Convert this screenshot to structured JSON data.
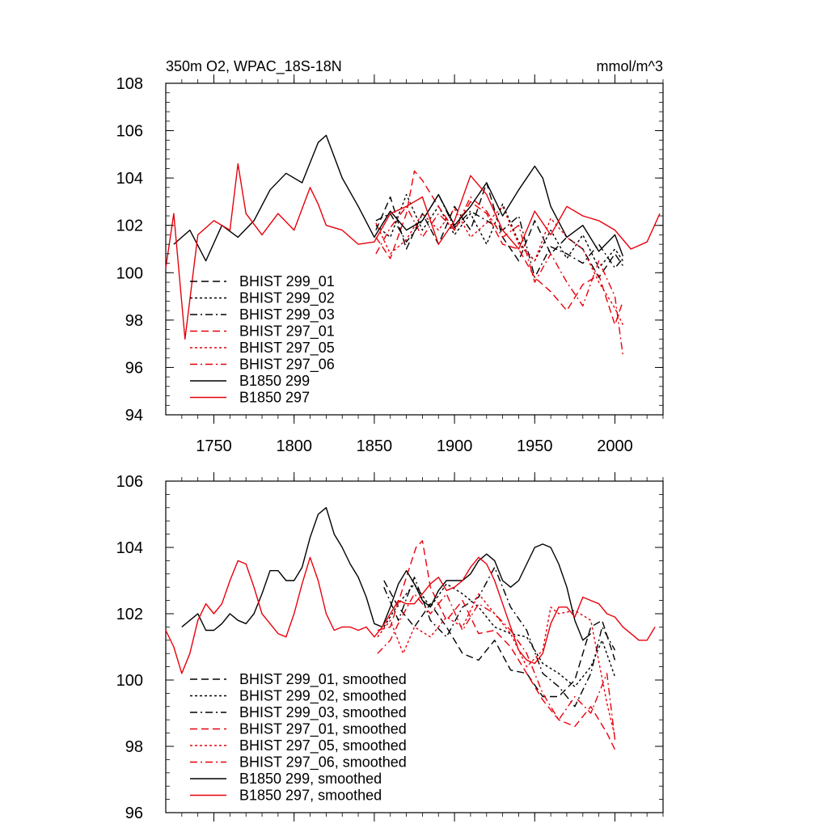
{
  "colors": {
    "black": "#000000",
    "red": "#e8000b"
  },
  "chart_data": [
    {
      "type": "line",
      "title": "350m O2, WPAC_18S-18N",
      "units": "mmol/m^3",
      "xlabel": "",
      "ylabel": "",
      "xlim": [
        1720,
        2030
      ],
      "ylim": [
        94,
        108
      ],
      "xticks": [
        1750,
        1800,
        1850,
        1900,
        1950,
        2000
      ],
      "xtick_labels": [
        "1750",
        "1800",
        "1850",
        "1900",
        "1950",
        "2000"
      ],
      "yticks": [
        94,
        96,
        98,
        100,
        102,
        104,
        106,
        108
      ],
      "ytick_labels": [
        "94",
        "96",
        "98",
        "100",
        "102",
        "104",
        "106",
        "108"
      ],
      "legend_position": "lower-left",
      "series": [
        {
          "name": "BHIST 299_01",
          "color": "black",
          "dash": "dashed",
          "x": [
            1851,
            1860,
            1870,
            1880,
            1890,
            1900,
            1910,
            1920,
            1930,
            1940,
            1950,
            1960,
            1970,
            1980,
            1990,
            2000,
            2005
          ],
          "y": [
            101.8,
            103.2,
            101.0,
            102.5,
            101.2,
            102.8,
            101.8,
            103.8,
            101.5,
            100.5,
            102.2,
            100.8,
            101.5,
            101.0,
            99.8,
            100.8,
            100.3
          ]
        },
        {
          "name": "BHIST 299_02",
          "color": "black",
          "dash": "dotted",
          "x": [
            1851,
            1860,
            1870,
            1880,
            1890,
            1900,
            1910,
            1920,
            1930,
            1940,
            1950,
            1960,
            1970,
            1980,
            1990,
            2000,
            2005
          ],
          "y": [
            102.0,
            101.5,
            103.3,
            101.8,
            102.8,
            101.6,
            102.5,
            101.2,
            102.9,
            101.3,
            100.5,
            101.8,
            100.6,
            101.6,
            100.2,
            101.0,
            100.5
          ]
        },
        {
          "name": "BHIST 299_03",
          "color": "black",
          "dash": "dashdot",
          "x": [
            1851,
            1860,
            1870,
            1880,
            1890,
            1900,
            1910,
            1920,
            1930,
            1940,
            1950,
            1960,
            1970,
            1980,
            1990,
            2000,
            2005
          ],
          "y": [
            102.2,
            102.5,
            101.3,
            102.2,
            103.3,
            101.9,
            102.6,
            102.2,
            101.8,
            102.4,
            99.8,
            101.1,
            100.8,
            100.4,
            101.2,
            100.2,
            100.6
          ]
        },
        {
          "name": "BHIST 297_01",
          "color": "red",
          "dash": "dashed",
          "x": [
            1851,
            1860,
            1870,
            1875,
            1880,
            1890,
            1900,
            1910,
            1920,
            1930,
            1940,
            1950,
            1960,
            1970,
            1980,
            1990,
            2000,
            2005
          ],
          "y": [
            101.5,
            100.6,
            102.5,
            104.3,
            103.9,
            102.8,
            101.8,
            103.0,
            102.5,
            101.2,
            101.0,
            99.8,
            99.2,
            98.4,
            99.5,
            99.9,
            97.8,
            98.8
          ]
        },
        {
          "name": "BHIST 297_05",
          "color": "red",
          "dash": "dotted",
          "x": [
            1851,
            1860,
            1870,
            1880,
            1890,
            1900,
            1910,
            1920,
            1930,
            1940,
            1950,
            1960,
            1970,
            1980,
            1990,
            2000,
            2005
          ],
          "y": [
            102.1,
            100.8,
            101.4,
            102.5,
            101.8,
            102.7,
            101.5,
            102.1,
            102.8,
            101.2,
            100.5,
            102.3,
            101.5,
            101.0,
            99.6,
            98.5,
            97.8
          ]
        },
        {
          "name": "BHIST 297_06",
          "color": "red",
          "dash": "dashdot",
          "x": [
            1851,
            1860,
            1870,
            1880,
            1890,
            1900,
            1910,
            1920,
            1930,
            1940,
            1950,
            1960,
            1970,
            1980,
            1990,
            2000,
            2005
          ],
          "y": [
            100.8,
            101.9,
            102.8,
            101.5,
            102.5,
            101.8,
            103.2,
            102.6,
            101.5,
            102.0,
            99.6,
            100.8,
            99.6,
            98.6,
            100.5,
            99.0,
            96.5
          ]
        },
        {
          "name": "B1850 299",
          "color": "black",
          "dash": "solid",
          "x": [
            1725,
            1735,
            1745,
            1755,
            1765,
            1775,
            1785,
            1795,
            1805,
            1815,
            1820,
            1830,
            1840,
            1850,
            1860,
            1870,
            1880,
            1890,
            1900,
            1910,
            1920,
            1930,
            1940,
            1950,
            1955,
            1960,
            1970,
            1980,
            1990,
            2000,
            2005
          ],
          "y": [
            101.2,
            101.8,
            100.5,
            102.0,
            101.5,
            102.2,
            103.5,
            104.2,
            103.8,
            105.5,
            105.8,
            104.0,
            102.8,
            101.5,
            102.6,
            101.8,
            102.2,
            103.3,
            102.0,
            102.8,
            103.8,
            102.4,
            103.5,
            104.5,
            104.0,
            102.8,
            101.5,
            102.0,
            100.9,
            101.6,
            100.7
          ]
        },
        {
          "name": "B1850 297",
          "color": "red",
          "dash": "solid",
          "x": [
            1720,
            1725,
            1732,
            1740,
            1750,
            1760,
            1765,
            1770,
            1780,
            1790,
            1800,
            1810,
            1815,
            1820,
            1830,
            1840,
            1850,
            1860,
            1870,
            1880,
            1890,
            1900,
            1910,
            1920,
            1930,
            1940,
            1950,
            1960,
            1970,
            1980,
            1990,
            2000,
            2010,
            2020,
            2028
          ],
          "y": [
            100.2,
            102.5,
            97.2,
            101.6,
            102.2,
            101.8,
            104.6,
            102.5,
            101.6,
            102.5,
            101.8,
            103.6,
            102.9,
            102.0,
            101.8,
            101.2,
            101.3,
            102.5,
            102.8,
            103.2,
            101.2,
            102.2,
            104.1,
            103.3,
            101.8,
            101.0,
            102.6,
            101.6,
            102.8,
            102.4,
            102.2,
            101.8,
            101.0,
            101.3,
            102.5
          ]
        }
      ]
    },
    {
      "type": "line",
      "title": "",
      "xlabel": "",
      "ylabel": "",
      "xlim": [
        1720,
        2030
      ],
      "ylim": [
        96,
        106
      ],
      "xticks": [
        1750,
        1800,
        1850,
        1900,
        1950,
        2000
      ],
      "xtick_labels": [],
      "yticks": [
        96,
        98,
        100,
        102,
        104,
        106
      ],
      "ytick_labels": [
        "96",
        "98",
        "100",
        "102",
        "104",
        "106"
      ],
      "legend_position": "lower-left",
      "series": [
        {
          "name": "BHIST 299_01, smoothed",
          "color": "black",
          "dash": "dashed",
          "x": [
            1856,
            1865,
            1875,
            1885,
            1895,
            1905,
            1915,
            1925,
            1935,
            1945,
            1955,
            1965,
            1975,
            1985,
            1992,
            2000
          ],
          "y": [
            103.0,
            102.2,
            101.6,
            102.3,
            101.6,
            100.8,
            100.6,
            101.2,
            100.3,
            100.2,
            99.5,
            99.5,
            100.0,
            101.6,
            101.8,
            100.6
          ]
        },
        {
          "name": "BHIST 299_02, smoothed",
          "color": "black",
          "dash": "dotted",
          "x": [
            1856,
            1865,
            1875,
            1885,
            1895,
            1905,
            1915,
            1925,
            1935,
            1945,
            1955,
            1965,
            1975,
            1985,
            1992,
            2000
          ],
          "y": [
            101.6,
            102.3,
            102.9,
            102.2,
            102.9,
            102.6,
            102.2,
            101.6,
            101.4,
            101.3,
            100.5,
            100.2,
            99.8,
            100.4,
            101.2,
            100.1
          ]
        },
        {
          "name": "BHIST 299_03, smoothed",
          "color": "black",
          "dash": "dashdot",
          "x": [
            1856,
            1865,
            1875,
            1885,
            1895,
            1905,
            1915,
            1925,
            1935,
            1945,
            1955,
            1965,
            1975,
            1985,
            1992,
            2000
          ],
          "y": [
            102.8,
            101.8,
            103.1,
            101.8,
            101.3,
            102.2,
            102.5,
            103.4,
            102.2,
            101.5,
            100.2,
            99.8,
            99.2,
            100.2,
            101.6,
            100.9
          ]
        },
        {
          "name": "BHIST 297_01, smoothed",
          "color": "red",
          "dash": "dashed",
          "x": [
            1852,
            1860,
            1868,
            1876,
            1880,
            1885,
            1895,
            1905,
            1915,
            1925,
            1935,
            1945,
            1955,
            1965,
            1975,
            1985,
            1995,
            2000
          ],
          "y": [
            101.5,
            101.6,
            102.8,
            104.0,
            104.2,
            102.8,
            101.8,
            102.4,
            101.4,
            101.5,
            101.0,
            100.2,
            99.4,
            98.8,
            98.6,
            99.2,
            98.4,
            97.9
          ]
        },
        {
          "name": "BHIST 297_05, smoothed",
          "color": "red",
          "dash": "dotted",
          "x": [
            1852,
            1860,
            1868,
            1875,
            1885,
            1895,
            1905,
            1915,
            1925,
            1935,
            1945,
            1955,
            1960,
            1965,
            1975,
            1985,
            1995,
            2000
          ],
          "y": [
            101.3,
            101.8,
            100.8,
            101.6,
            101.3,
            101.9,
            101.6,
            102.6,
            102.0,
            101.4,
            100.4,
            100.9,
            102.2,
            102.0,
            102.1,
            101.8,
            99.3,
            98.3
          ]
        },
        {
          "name": "BHIST 297_06, smoothed",
          "color": "red",
          "dash": "dashdot",
          "x": [
            1852,
            1860,
            1866,
            1875,
            1885,
            1895,
            1905,
            1915,
            1925,
            1935,
            1945,
            1955,
            1965,
            1975,
            1985,
            1995,
            2000
          ],
          "y": [
            100.8,
            101.2,
            101.8,
            102.6,
            102.0,
            102.6,
            101.5,
            102.3,
            102.0,
            101.5,
            100.8,
            99.6,
            98.8,
            99.5,
            99.0,
            100.2,
            98.2
          ]
        },
        {
          "name": "B1850 299, smoothed",
          "color": "black",
          "dash": "solid",
          "x": [
            1730,
            1735,
            1740,
            1745,
            1750,
            1755,
            1760,
            1765,
            1770,
            1775,
            1780,
            1785,
            1790,
            1795,
            1800,
            1805,
            1810,
            1815,
            1820,
            1825,
            1830,
            1835,
            1840,
            1845,
            1850,
            1855,
            1860,
            1865,
            1870,
            1875,
            1880,
            1885,
            1890,
            1895,
            1900,
            1905,
            1910,
            1915,
            1920,
            1925,
            1930,
            1935,
            1940,
            1945,
            1950,
            1955,
            1960,
            1965,
            1970,
            1975,
            1980,
            1985
          ],
          "y": [
            101.6,
            101.8,
            102.0,
            101.5,
            101.5,
            101.7,
            102.0,
            101.8,
            101.7,
            102.0,
            102.6,
            103.3,
            103.3,
            103.0,
            103.0,
            103.4,
            104.3,
            105.0,
            105.2,
            104.4,
            104.0,
            103.5,
            103.1,
            102.5,
            101.7,
            101.6,
            102.2,
            102.9,
            103.3,
            102.9,
            102.4,
            102.2,
            102.7,
            103.0,
            103.0,
            103.0,
            103.2,
            103.6,
            103.8,
            103.6,
            103.0,
            102.8,
            103.0,
            103.5,
            104.0,
            104.1,
            104.0,
            103.5,
            102.8,
            101.8,
            101.2,
            101.4
          ]
        },
        {
          "name": "B1850 297, smoothed",
          "color": "red",
          "dash": "solid",
          "x": [
            1720,
            1725,
            1730,
            1735,
            1740,
            1745,
            1750,
            1755,
            1760,
            1765,
            1770,
            1775,
            1780,
            1785,
            1790,
            1795,
            1800,
            1805,
            1810,
            1815,
            1820,
            1825,
            1830,
            1835,
            1840,
            1845,
            1850,
            1855,
            1860,
            1865,
            1870,
            1875,
            1880,
            1885,
            1890,
            1895,
            1900,
            1905,
            1910,
            1915,
            1920,
            1925,
            1930,
            1935,
            1940,
            1945,
            1950,
            1955,
            1960,
            1965,
            1970,
            1975,
            1980,
            1985,
            1990,
            1995,
            2000,
            2005,
            2010,
            2015,
            2020,
            2025
          ],
          "y": [
            101.5,
            101.0,
            100.2,
            100.8,
            101.8,
            102.3,
            102.0,
            102.3,
            103.0,
            103.6,
            103.5,
            102.8,
            102.0,
            101.7,
            101.4,
            101.3,
            102.0,
            102.9,
            103.7,
            103.0,
            102.0,
            101.5,
            101.6,
            101.6,
            101.5,
            101.6,
            101.3,
            101.6,
            102.0,
            102.4,
            102.3,
            102.3,
            102.6,
            102.9,
            103.1,
            102.7,
            102.8,
            103.0,
            103.4,
            103.7,
            103.5,
            103.0,
            102.3,
            101.6,
            100.9,
            100.6,
            100.5,
            100.8,
            101.7,
            102.2,
            102.2,
            101.9,
            102.5,
            102.4,
            102.3,
            102.0,
            101.9,
            101.6,
            101.4,
            101.2,
            101.2,
            101.6
          ]
        }
      ]
    }
  ]
}
